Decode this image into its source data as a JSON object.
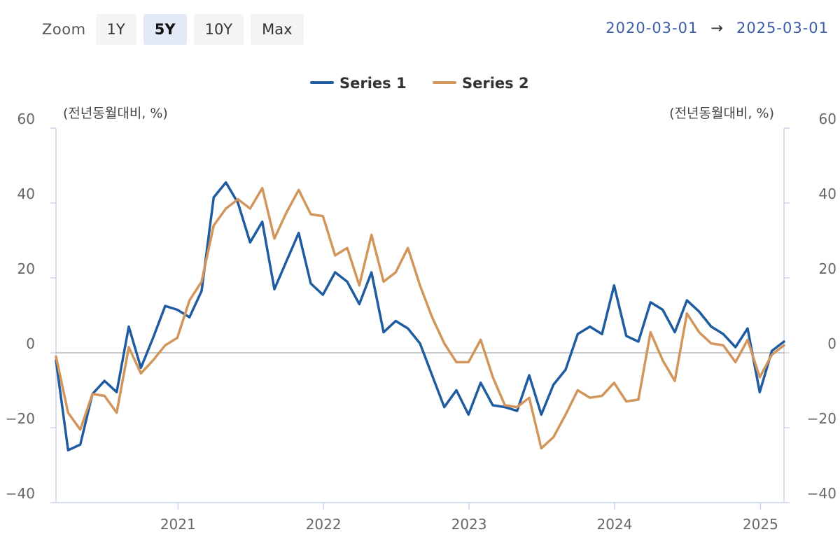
{
  "toolbar": {
    "zoom_label": "Zoom",
    "buttons": [
      {
        "label": "1Y",
        "active": false
      },
      {
        "label": "5Y",
        "active": true
      },
      {
        "label": "10Y",
        "active": false
      },
      {
        "label": "Max",
        "active": false
      }
    ]
  },
  "range": {
    "from": "2020-03-01",
    "arrow": "→",
    "to": "2025-03-01"
  },
  "chart_data": {
    "type": "line",
    "left_axis_label": "(전년동월대비, %)",
    "right_axis_label": "(전년동월대비, %)",
    "ylim": [
      -40,
      60
    ],
    "y_ticks": [
      60,
      40,
      20,
      0,
      -20,
      -40
    ],
    "y_tick_labels": [
      "60",
      "40",
      "20",
      "0",
      "−20",
      "−40"
    ],
    "x_start": "2020-03-01",
    "x_end": "2025-03-01",
    "x_ticks": [
      {
        "date": "2021-01-01",
        "label": "2021"
      },
      {
        "date": "2022-01-01",
        "label": "2022"
      },
      {
        "date": "2023-01-01",
        "label": "2023"
      },
      {
        "date": "2024-01-01",
        "label": "2024"
      },
      {
        "date": "2025-01-01",
        "label": "2025"
      }
    ],
    "legend_position": "top-center",
    "series": [
      {
        "name": "Series 1",
        "color": "#1f5ba0",
        "values": [
          -2,
          -26,
          -24.5,
          -11,
          -7.5,
          -10.5,
          7,
          -4,
          4,
          12.5,
          11.5,
          9.5,
          16.5,
          41.5,
          45.5,
          40,
          29.5,
          35,
          17,
          24.5,
          32,
          18.5,
          15.5,
          21.5,
          19,
          13,
          21.5,
          5.5,
          8.5,
          6.5,
          2.5,
          -6,
          -14.5,
          -10,
          -16.5,
          -8,
          -14,
          -14.5,
          -15.5,
          -6,
          -16.5,
          -8.5,
          -4.5,
          5,
          7,
          5,
          18,
          4.5,
          3,
          13.5,
          11.5,
          5.5,
          14,
          11,
          7,
          5,
          1.5,
          6.5,
          -10.5,
          0.5,
          3
        ]
      },
      {
        "name": "Series 2",
        "color": "#d2955b",
        "values": [
          -1,
          -16,
          -20.5,
          -11,
          -11.5,
          -16,
          1.5,
          -5.5,
          -2,
          2,
          4,
          14,
          19,
          34,
          38.5,
          41,
          38.5,
          44,
          30.5,
          37.5,
          43.5,
          37,
          36.5,
          26,
          28,
          18,
          31.5,
          19,
          21.5,
          28,
          18,
          9.5,
          2.5,
          -2.5,
          -2.5,
          3.5,
          -6.5,
          -14,
          -14.5,
          -12,
          -25.5,
          -22.5,
          -16.5,
          -10,
          -12,
          -11.5,
          -8,
          -13,
          -12.5,
          5.5,
          -2,
          -7.5,
          10.5,
          5.5,
          2.5,
          2,
          -2.5,
          3.5,
          -6.5,
          -0.5,
          2
        ]
      }
    ]
  }
}
